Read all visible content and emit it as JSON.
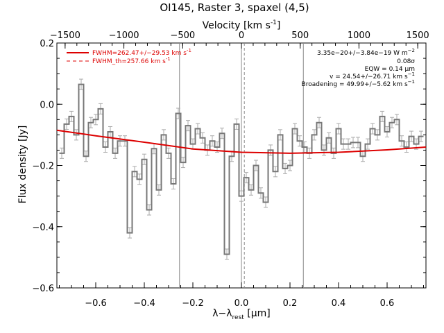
{
  "chart_data": {
    "type": "line",
    "title": "OI145, Raster 3, spaxel (4,5)",
    "xlabel_main": "λ−λ",
    "xlabel_sub": "rest",
    "xlabel_unit_pre": " [",
    "xlabel_unit_mu": "μ",
    "xlabel_unit_post": "m]",
    "ylabel": "Flux density [Jy]",
    "top_axis_label_pre": "Velocity [km s",
    "top_axis_label_exp": "-1",
    "top_axis_label_post": "]",
    "xlim": [
      -0.76,
      0.76
    ],
    "ylim": [
      -0.6,
      0.2
    ],
    "top_xlim": [
      -1570,
      1570
    ],
    "x_ticks": [
      -0.6,
      -0.4,
      -0.2,
      0.0,
      0.2,
      0.4,
      0.6
    ],
    "x_tick_labels": [
      "−0.6",
      "−0.4",
      "−0.2",
      "0.0",
      "0.2",
      "0.4",
      "0.6"
    ],
    "y_ticks": [
      -0.6,
      -0.4,
      -0.2,
      0.0,
      0.2
    ],
    "y_tick_labels": [
      "−0.6",
      "−0.4",
      "−0.2",
      "0.0",
      "0.2"
    ],
    "top_ticks": [
      -1500,
      -1000,
      -500,
      0,
      500,
      1000,
      1500
    ],
    "top_tick_labels": [
      "−1500",
      "−1000",
      "−500",
      "0",
      "500",
      "1000",
      "1500"
    ],
    "vertical_lines": [
      -0.255,
      0.0,
      0.255
    ],
    "dashed_line_x": 0.012,
    "series": [
      {
        "name": "FWHM=262.47+/−29.53 km s",
        "name_exp": "-1",
        "style": "solid",
        "color": "#dd0000",
        "x": [
          -0.76,
          -0.6,
          -0.4,
          -0.2,
          0.0,
          0.2,
          0.4,
          0.6,
          0.76
        ],
        "y": [
          -0.085,
          -0.103,
          -0.124,
          -0.146,
          -0.157,
          -0.16,
          -0.157,
          -0.149,
          -0.14
        ]
      },
      {
        "name": "FWHM_th=257.66 km s",
        "name_exp": "-1",
        "style": "dashed",
        "color": "#dd0000",
        "x": [],
        "y": []
      },
      {
        "name": "",
        "style": "step",
        "color": "#777777",
        "x": [
          -0.74,
          -0.72,
          -0.7,
          -0.68,
          -0.66,
          -0.64,
          -0.62,
          -0.6,
          -0.58,
          -0.56,
          -0.54,
          -0.52,
          -0.5,
          -0.48,
          -0.46,
          -0.44,
          -0.42,
          -0.4,
          -0.38,
          -0.36,
          -0.34,
          -0.32,
          -0.3,
          -0.28,
          -0.26,
          -0.24,
          -0.22,
          -0.2,
          -0.18,
          -0.16,
          -0.14,
          -0.12,
          -0.1,
          -0.08,
          -0.06,
          -0.04,
          -0.02,
          0.0,
          0.02,
          0.04,
          0.06,
          0.08,
          0.1,
          0.12,
          0.14,
          0.16,
          0.18,
          0.2,
          0.22,
          0.24,
          0.26,
          0.28,
          0.3,
          0.32,
          0.34,
          0.36,
          0.38,
          0.4,
          0.42,
          0.44,
          0.46,
          0.48,
          0.5,
          0.52,
          0.54,
          0.56,
          0.58,
          0.6,
          0.62,
          0.64,
          0.66,
          0.68,
          0.7,
          0.72,
          0.74
        ],
        "y": [
          -0.16,
          -0.065,
          -0.04,
          -0.1,
          0.065,
          -0.17,
          -0.06,
          -0.05,
          -0.015,
          -0.14,
          -0.09,
          -0.16,
          -0.12,
          -0.12,
          -0.42,
          -0.22,
          -0.245,
          -0.18,
          -0.345,
          -0.145,
          -0.28,
          -0.1,
          -0.16,
          -0.26,
          -0.03,
          -0.19,
          -0.07,
          -0.13,
          -0.08,
          -0.11,
          -0.15,
          -0.12,
          -0.14,
          -0.095,
          -0.49,
          -0.17,
          -0.065,
          -0.3,
          -0.24,
          -0.28,
          -0.2,
          -0.29,
          -0.32,
          -0.15,
          -0.22,
          -0.1,
          -0.21,
          -0.2,
          -0.08,
          -0.12,
          -0.14,
          -0.16,
          -0.1,
          -0.06,
          -0.15,
          -0.11,
          -0.16,
          -0.08,
          -0.13,
          -0.13,
          -0.125,
          -0.125,
          -0.17,
          -0.13,
          -0.08,
          -0.1,
          -0.04,
          -0.09,
          -0.06,
          -0.05,
          -0.12,
          -0.14,
          -0.105,
          -0.13,
          -0.105
        ]
      }
    ],
    "annotations": [
      {
        "text": "3.35e−20+/−3.84e−19 W m",
        "sup": "−2"
      },
      {
        "text": "0.08σ",
        "sup": ""
      },
      {
        "text": "EQW = 0.14 ",
        "mu": "μ",
        "tail": "m",
        "sup": ""
      },
      {
        "text": "v = 24.54+/−26.71 km s",
        "sup": "−1"
      },
      {
        "text": "Broadening = 49.99+/−5.62 km s",
        "sup": "−1"
      }
    ],
    "grid": false,
    "legend_position": "top-left"
  },
  "colors": {
    "fit": "#dd0000",
    "data": "#777777",
    "errorbar": "#aaaaaa",
    "axis": "#000000"
  }
}
